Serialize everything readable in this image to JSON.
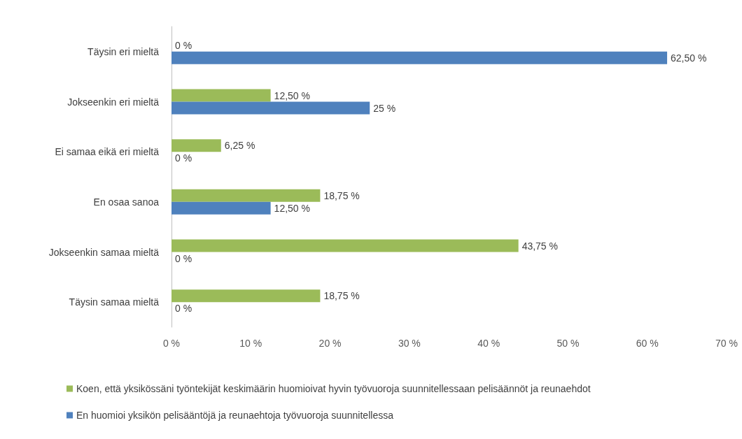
{
  "chart_data": {
    "type": "bar",
    "orientation": "horizontal",
    "categories": [
      "Täysin eri mieltä",
      "Jokseenkin eri mieltä",
      "Ei samaa eikä eri mieltä",
      "En osaa sanoa",
      "Jokseenkin samaa mieltä",
      "Täysin samaa mieltä"
    ],
    "series": [
      {
        "name": "Koen, että yksikössäni työntekijät keskimäärin huomioivat hyvin työvuoroja suunnitellessaan pelisäännöt ja reunaehdot",
        "color": "#9bbb59",
        "values": [
          0,
          12.5,
          6.25,
          18.75,
          43.75,
          18.75
        ],
        "value_labels": [
          "0 %",
          "12,50 %",
          "6,25 %",
          "18,75 %",
          "43,75 %",
          "18,75 %"
        ]
      },
      {
        "name": "En huomioi yksikön pelisääntöjä ja reunaehtoja työvuoroja suunnitellessa",
        "color": "#4f81bd",
        "values": [
          62.5,
          25,
          0,
          12.5,
          0,
          0
        ],
        "value_labels": [
          "62,50 %",
          "25 %",
          "0 %",
          "12,50 %",
          "0 %",
          "0 %"
        ]
      }
    ],
    "xlim": [
      0,
      70
    ],
    "xticks": [
      {
        "value": 0,
        "label": "0 %"
      },
      {
        "value": 10,
        "label": "10 %"
      },
      {
        "value": 20,
        "label": "20 %"
      },
      {
        "value": 30,
        "label": "30 %"
      },
      {
        "value": 40,
        "label": "40 %"
      },
      {
        "value": 50,
        "label": "50 %"
      },
      {
        "value": 60,
        "label": "60 %"
      },
      {
        "value": 70,
        "label": "70 %"
      }
    ],
    "grid": false,
    "legend": "bottom"
  }
}
